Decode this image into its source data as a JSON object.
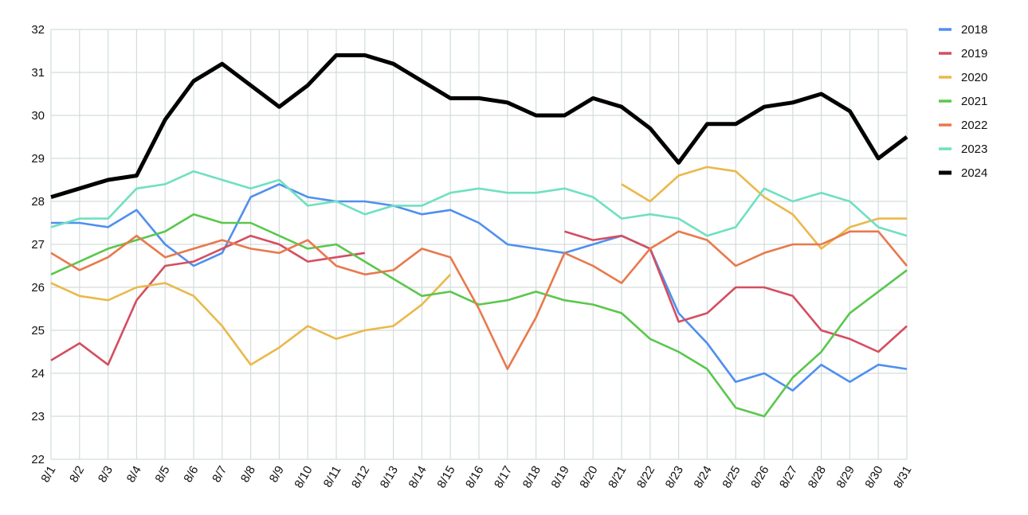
{
  "chart_data": {
    "type": "line",
    "title": "",
    "xlabel": "",
    "ylabel": "",
    "categories": [
      "8/1",
      "8/2",
      "8/3",
      "8/4",
      "8/5",
      "8/6",
      "8/7",
      "8/8",
      "8/9",
      "8/10",
      "8/11",
      "8/12",
      "8/13",
      "8/14",
      "8/15",
      "8/16",
      "8/17",
      "8/18",
      "8/19",
      "8/20",
      "8/21",
      "8/22",
      "8/23",
      "8/24",
      "8/25",
      "8/26",
      "8/27",
      "8/28",
      "8/29",
      "8/30",
      "8/31"
    ],
    "ylim": [
      22,
      32
    ],
    "yticks": [
      22,
      23,
      24,
      25,
      26,
      27,
      28,
      29,
      30,
      31,
      32
    ],
    "grid": true,
    "legend_position": "right",
    "series": [
      {
        "name": "2018",
        "color": "#4f8ff0",
        "values": [
          27.5,
          27.5,
          27.4,
          27.8,
          27.0,
          26.5,
          26.8,
          28.1,
          28.4,
          28.1,
          28.0,
          28.0,
          27.9,
          27.7,
          27.8,
          27.5,
          27.0,
          26.9,
          26.8,
          27.0,
          27.2,
          26.9,
          25.4,
          24.7,
          23.8,
          24.0,
          23.6,
          24.2,
          23.8,
          24.2,
          24.1
        ]
      },
      {
        "name": "2019",
        "color": "#d44e60",
        "values": [
          24.3,
          24.7,
          24.2,
          25.7,
          26.5,
          26.6,
          26.9,
          27.2,
          27.0,
          26.6,
          26.7,
          26.8,
          null,
          null,
          null,
          null,
          null,
          null,
          27.3,
          27.1,
          27.2,
          26.9,
          25.2,
          25.4,
          26.0,
          26.0,
          25.8,
          25.0,
          24.8,
          24.5,
          25.1
        ]
      },
      {
        "name": "2020",
        "color": "#eab94a",
        "values": [
          26.1,
          25.8,
          25.7,
          26.0,
          26.1,
          25.8,
          25.1,
          24.2,
          24.6,
          25.1,
          24.8,
          25.0,
          25.1,
          25.6,
          26.3,
          null,
          null,
          null,
          null,
          null,
          28.4,
          28.0,
          28.6,
          28.8,
          28.7,
          28.1,
          27.7,
          26.9,
          27.4,
          27.6,
          27.6
        ]
      },
      {
        "name": "2021",
        "color": "#5ac74d",
        "values": [
          26.3,
          26.6,
          26.9,
          27.1,
          27.3,
          27.7,
          27.5,
          27.5,
          27.2,
          26.9,
          27.0,
          26.6,
          26.2,
          25.8,
          25.9,
          25.6,
          25.7,
          25.9,
          25.7,
          25.6,
          25.4,
          24.8,
          24.5,
          24.1,
          23.2,
          23.0,
          23.9,
          24.5,
          25.4,
          25.9,
          26.4
        ]
      },
      {
        "name": "2022",
        "color": "#e8794d",
        "values": [
          26.8,
          26.4,
          26.7,
          27.2,
          26.7,
          26.9,
          27.1,
          26.9,
          26.8,
          27.1,
          26.5,
          26.3,
          26.4,
          26.9,
          26.7,
          25.5,
          24.1,
          25.3,
          26.8,
          26.5,
          26.1,
          26.9,
          27.3,
          27.1,
          26.5,
          26.8,
          27.0,
          27.0,
          27.3,
          27.3,
          26.5
        ]
      },
      {
        "name": "2023",
        "color": "#6fe0c0",
        "values": [
          27.4,
          27.6,
          27.6,
          28.3,
          28.4,
          28.7,
          28.5,
          28.3,
          28.5,
          27.9,
          28.0,
          27.7,
          27.9,
          27.9,
          28.2,
          28.3,
          28.2,
          28.2,
          28.3,
          28.1,
          27.6,
          27.7,
          27.6,
          27.2,
          27.4,
          28.3,
          28.0,
          28.2,
          28.0,
          27.4,
          27.2
        ]
      },
      {
        "name": "2024",
        "color": "#000000",
        "values": [
          28.1,
          28.3,
          28.5,
          28.6,
          29.9,
          30.8,
          31.2,
          30.7,
          30.2,
          30.7,
          31.4,
          31.4,
          31.2,
          30.8,
          30.4,
          30.4,
          30.3,
          30.0,
          30.0,
          30.4,
          30.2,
          29.7,
          28.9,
          29.8,
          29.8,
          30.2,
          30.3,
          30.5,
          30.1,
          29.0,
          29.5
        ]
      }
    ]
  }
}
